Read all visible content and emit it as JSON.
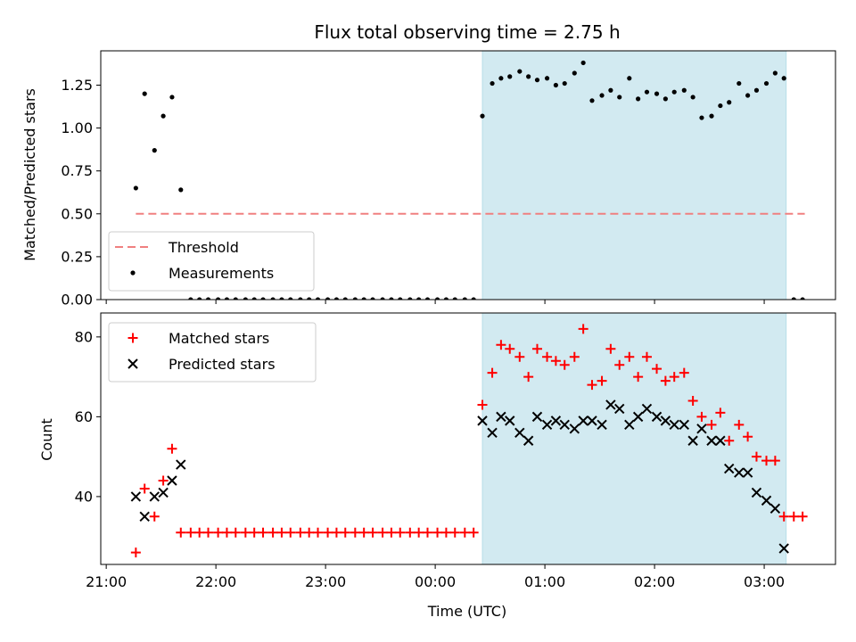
{
  "chart_data": [
    {
      "type": "scatter",
      "title": "Flux total observing time = 2.75 h",
      "xlabel": "",
      "ylabel": "Matched/Predicted stars",
      "x_unit": "hours since 21:00 UTC",
      "xlim": [
        -0.05,
        6.65
      ],
      "ylim": [
        0,
        1.45
      ],
      "yticks": [
        0.0,
        0.25,
        0.5,
        0.75,
        1.0,
        1.25
      ],
      "ytick_labels": [
        "0.00",
        "0.25",
        "0.50",
        "0.75",
        "1.00",
        "1.25"
      ],
      "shaded_span": {
        "x0": 3.43,
        "x1": 6.2,
        "color": "#add8e6"
      },
      "threshold": {
        "name": "Threshold",
        "y": 0.5,
        "x0": 0.27,
        "x1": 6.37,
        "color": "#f08080"
      },
      "series": [
        {
          "name": "Measurements",
          "color": "#000000",
          "x": [
            0.27,
            0.35,
            0.44,
            0.52,
            0.6,
            0.68,
            0.77,
            0.85,
            0.93,
            1.02,
            1.1,
            1.18,
            1.27,
            1.35,
            1.43,
            1.52,
            1.6,
            1.68,
            1.77,
            1.85,
            1.93,
            2.02,
            2.1,
            2.18,
            2.27,
            2.35,
            2.43,
            2.52,
            2.6,
            2.68,
            2.77,
            2.85,
            2.93,
            3.02,
            3.1,
            3.18,
            3.27,
            3.35,
            3.43,
            3.52,
            3.6,
            3.68,
            3.77,
            3.85,
            3.93,
            4.02,
            4.1,
            4.18,
            4.27,
            4.35,
            4.43,
            4.52,
            4.6,
            4.68,
            4.77,
            4.85,
            4.93,
            5.02,
            5.1,
            5.18,
            5.27,
            5.35,
            5.43,
            5.52,
            5.6,
            5.68,
            5.77,
            5.85,
            5.93,
            6.02,
            6.1,
            6.18,
            6.27,
            6.35
          ],
          "y": [
            0.65,
            1.2,
            0.87,
            1.07,
            1.18,
            0.64,
            0,
            0,
            0,
            0,
            0,
            0,
            0,
            0,
            0,
            0,
            0,
            0,
            0,
            0,
            0,
            0,
            0,
            0,
            0,
            0,
            0,
            0,
            0,
            0,
            0,
            0,
            0,
            0,
            0,
            0,
            0,
            0,
            1.07,
            1.26,
            1.29,
            1.3,
            1.33,
            1.3,
            1.28,
            1.29,
            1.25,
            1.26,
            1.32,
            1.38,
            1.16,
            1.19,
            1.22,
            1.18,
            1.29,
            1.17,
            1.21,
            1.2,
            1.17,
            1.21,
            1.22,
            1.18,
            1.06,
            1.07,
            1.13,
            1.15,
            1.26,
            1.19,
            1.22,
            1.26,
            1.32,
            1.29,
            0,
            0
          ]
        }
      ],
      "legend": {
        "location": "lower-left",
        "entries": [
          "Threshold",
          "Measurements"
        ]
      }
    },
    {
      "type": "scatter",
      "xlabel": "Time (UTC)",
      "ylabel": "Count",
      "x_unit": "hours since 21:00 UTC",
      "xlim": [
        -0.05,
        6.65
      ],
      "ylim": [
        23,
        86
      ],
      "yticks": [
        40,
        60,
        80
      ],
      "ytick_labels": [
        "40",
        "60",
        "80"
      ],
      "xticks": [
        0,
        1,
        2,
        3,
        4,
        5,
        6
      ],
      "xtick_labels": [
        "21:00",
        "22:00",
        "23:00",
        "00:00",
        "01:00",
        "02:00",
        "03:00"
      ],
      "shaded_span": {
        "x0": 3.43,
        "x1": 6.2,
        "color": "#add8e6"
      },
      "series": [
        {
          "name": "Matched stars",
          "marker": "plus",
          "color": "#ff0000",
          "x": [
            0.27,
            0.35,
            0.44,
            0.52,
            0.6,
            0.68,
            0.77,
            0.85,
            0.93,
            1.02,
            1.1,
            1.18,
            1.27,
            1.35,
            1.43,
            1.52,
            1.6,
            1.68,
            1.77,
            1.85,
            1.93,
            2.02,
            2.1,
            2.18,
            2.27,
            2.35,
            2.43,
            2.52,
            2.6,
            2.68,
            2.77,
            2.85,
            2.93,
            3.02,
            3.1,
            3.18,
            3.27,
            3.35,
            3.43,
            3.52,
            3.6,
            3.68,
            3.77,
            3.85,
            3.93,
            4.02,
            4.1,
            4.18,
            4.27,
            4.35,
            4.43,
            4.52,
            4.6,
            4.68,
            4.77,
            4.85,
            4.93,
            5.02,
            5.1,
            5.18,
            5.27,
            5.35,
            5.43,
            5.52,
            5.6,
            5.68,
            5.77,
            5.85,
            5.93,
            6.02,
            6.1,
            6.18,
            6.27,
            6.35
          ],
          "y": [
            26,
            42,
            35,
            44,
            52,
            31,
            31,
            31,
            31,
            31,
            31,
            31,
            31,
            31,
            31,
            31,
            31,
            31,
            31,
            31,
            31,
            31,
            31,
            31,
            31,
            31,
            31,
            31,
            31,
            31,
            31,
            31,
            31,
            31,
            31,
            31,
            31,
            31,
            63,
            71,
            78,
            77,
            75,
            70,
            77,
            75,
            74,
            73,
            75,
            82,
            68,
            69,
            77,
            73,
            75,
            70,
            75,
            72,
            69,
            70,
            71,
            64,
            60,
            58,
            61,
            54,
            58,
            55,
            50,
            49,
            49,
            35,
            35,
            35
          ]
        },
        {
          "name": "Predicted stars",
          "marker": "x",
          "color": "#000000",
          "x": [
            0.27,
            0.35,
            0.44,
            0.52,
            0.6,
            0.68,
            3.43,
            3.52,
            3.6,
            3.68,
            3.77,
            3.85,
            3.93,
            4.02,
            4.1,
            4.18,
            4.27,
            4.35,
            4.43,
            4.52,
            4.6,
            4.68,
            4.77,
            4.85,
            4.93,
            5.02,
            5.1,
            5.18,
            5.27,
            5.35,
            5.43,
            5.52,
            5.6,
            5.68,
            5.77,
            5.85,
            5.93,
            6.02,
            6.1,
            6.18
          ],
          "y": [
            40,
            35,
            40,
            41,
            44,
            48,
            59,
            56,
            60,
            59,
            56,
            54,
            60,
            58,
            59,
            58,
            57,
            59,
            59,
            58,
            63,
            62,
            58,
            60,
            62,
            60,
            59,
            58,
            58,
            54,
            57,
            54,
            54,
            47,
            46,
            46,
            41,
            39,
            37,
            27
          ]
        }
      ],
      "legend": {
        "location": "upper-left",
        "entries": [
          "Matched stars",
          "Predicted stars"
        ]
      }
    }
  ]
}
